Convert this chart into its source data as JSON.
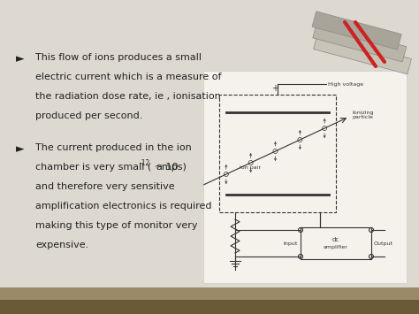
{
  "bg_color": "#ddd9d0",
  "card_color": "#f5f2ec",
  "text_color": "#222222",
  "diag_color": "#333333",
  "font_size": 8.0,
  "label_font_size": 5.0,
  "bullet1_lines": [
    "This flow of ions produces a small",
    "electric current which is a measure of",
    "the radiation dose rate, ie , ionisation",
    "produced per second."
  ],
  "bullet2_line0": "The current produced in the ion",
  "bullet2_line1a": "chamber is very small ( ~ 10",
  "superscript": "-12",
  "bullet2_line1b": "amps)",
  "bullet2_rest": [
    "and therefore very sensitive",
    "amplification electronics is required",
    "making this type of monitor very",
    "expensive."
  ],
  "book_colors": [
    "#c8c4b8",
    "#b8b4a8",
    "#a8a49a"
  ],
  "ribbon_color": "#cc2222",
  "bar_color_dark": "#6a5a38",
  "bar_color_light": "#9a8a68"
}
